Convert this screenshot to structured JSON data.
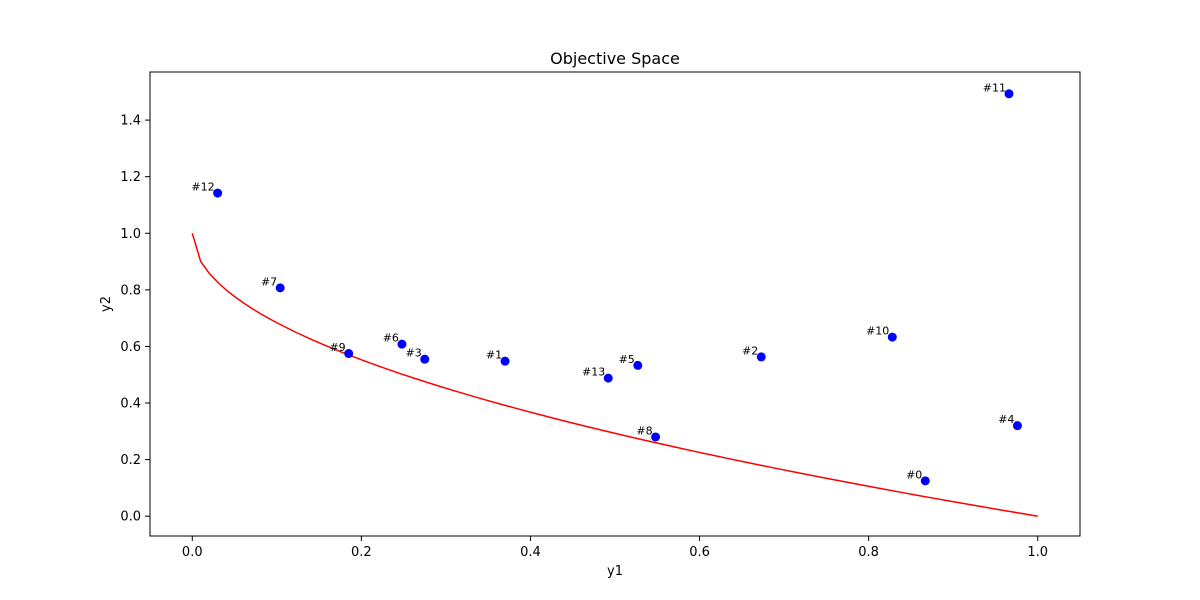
{
  "chart_data": {
    "type": "scatter",
    "title": "Objective Space",
    "xlabel": "y1",
    "ylabel": "y2",
    "xlim": [
      -0.05,
      1.05
    ],
    "ylim": [
      -0.07,
      1.57
    ],
    "xticks": [
      0.0,
      0.2,
      0.4,
      0.6,
      0.8,
      1.0
    ],
    "xtick_labels": [
      "0.0",
      "0.2",
      "0.4",
      "0.6",
      "0.8",
      "1.0"
    ],
    "yticks": [
      0.0,
      0.2,
      0.4,
      0.6,
      0.8,
      1.0,
      1.2,
      1.4
    ],
    "ytick_labels": [
      "0.0",
      "0.2",
      "0.4",
      "0.6",
      "0.8",
      "1.0",
      "1.2",
      "1.4"
    ],
    "grid": false,
    "points_color": "#0000ff",
    "curve_color": "#ff0000",
    "points": [
      {
        "label": "#0",
        "x": 0.867,
        "y": 0.125
      },
      {
        "label": "#1",
        "x": 0.37,
        "y": 0.548
      },
      {
        "label": "#2",
        "x": 0.673,
        "y": 0.563
      },
      {
        "label": "#3",
        "x": 0.275,
        "y": 0.555
      },
      {
        "label": "#4",
        "x": 0.976,
        "y": 0.32
      },
      {
        "label": "#5",
        "x": 0.527,
        "y": 0.533
      },
      {
        "label": "#6",
        "x": 0.248,
        "y": 0.608
      },
      {
        "label": "#7",
        "x": 0.104,
        "y": 0.807
      },
      {
        "label": "#8",
        "x": 0.548,
        "y": 0.28
      },
      {
        "label": "#9",
        "x": 0.185,
        "y": 0.575
      },
      {
        "label": "#10",
        "x": 0.828,
        "y": 0.633
      },
      {
        "label": "#11",
        "x": 0.966,
        "y": 1.493
      },
      {
        "label": "#12",
        "x": 0.03,
        "y": 1.142
      },
      {
        "label": "#13",
        "x": 0.492,
        "y": 0.488
      }
    ],
    "curve": {
      "function": "y = 1 - sqrt(x)",
      "x": [
        0.0,
        0.01,
        0.0204,
        0.0306,
        0.0408,
        0.051,
        0.0612,
        0.0714,
        0.0816,
        0.0918,
        0.102,
        0.1224,
        0.1429,
        0.1633,
        0.1837,
        0.2041,
        0.2245,
        0.2449,
        0.2653,
        0.2857,
        0.3061,
        0.3265,
        0.3469,
        0.3673,
        0.3878,
        0.4082,
        0.4286,
        0.449,
        0.4694,
        0.4898,
        0.5102,
        0.5306,
        0.551,
        0.5714,
        0.5918,
        0.6122,
        0.6327,
        0.6531,
        0.6735,
        0.6939,
        0.7143,
        0.7347,
        0.7551,
        0.7755,
        0.7959,
        0.8163,
        0.8367,
        0.8571,
        0.8776,
        0.898,
        0.9184,
        0.9388,
        0.9592,
        0.9796,
        1.0
      ],
      "y": [
        1.0,
        0.9,
        0.8571,
        0.8251,
        0.798,
        0.7742,
        0.7526,
        0.7328,
        0.7143,
        0.697,
        0.6806,
        0.6501,
        0.622,
        0.5959,
        0.5714,
        0.5482,
        0.5262,
        0.5051,
        0.4849,
        0.4655,
        0.4467,
        0.4286,
        0.411,
        0.3939,
        0.3773,
        0.3611,
        0.3453,
        0.3299,
        0.3149,
        0.3001,
        0.2857,
        0.2716,
        0.2577,
        0.2441,
        0.2307,
        0.2176,
        0.2046,
        0.1919,
        0.1793,
        0.167,
        0.1548,
        0.1428,
        0.131,
        0.1194,
        0.1079,
        0.0965,
        0.0853,
        0.0742,
        0.0632,
        0.0524,
        0.0417,
        0.0311,
        0.0206,
        0.0103,
        0.0
      ]
    }
  }
}
